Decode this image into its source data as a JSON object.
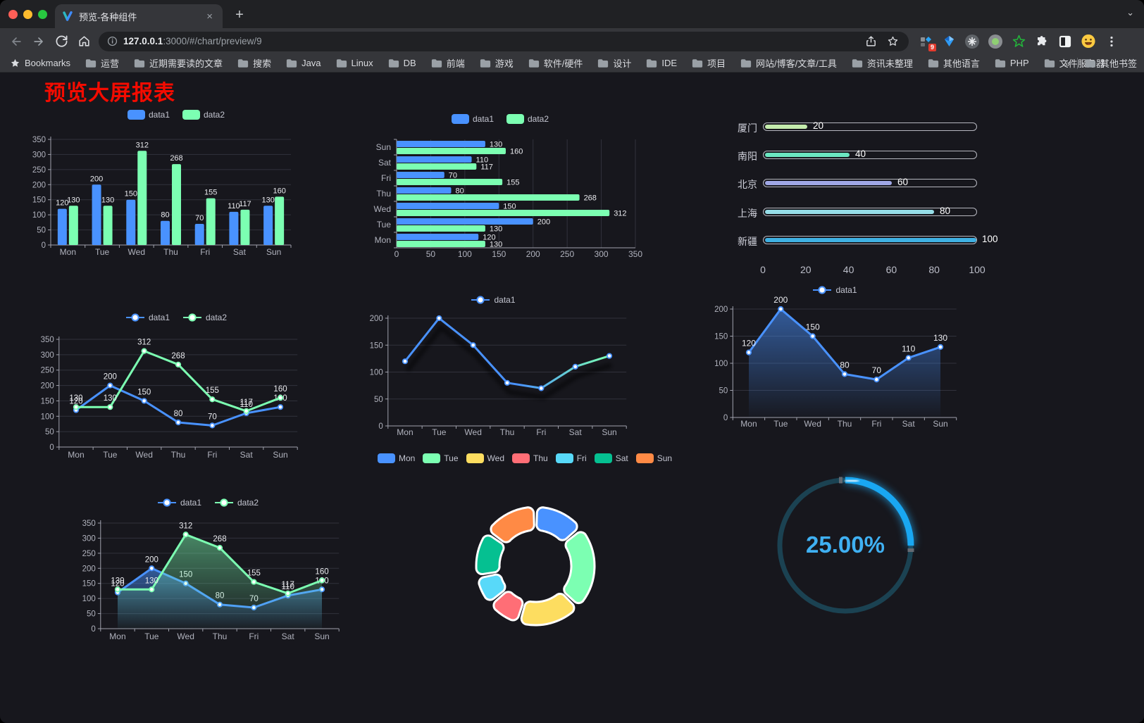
{
  "browser": {
    "tab": {
      "title": "预览-各种组件",
      "close_glyph": "×",
      "new_tab_glyph": "+",
      "chevron_glyph": "⌄"
    },
    "address": {
      "host": "127.0.0.1",
      "path": ":3000/#/chart/preview/9"
    },
    "extension_badge": "9",
    "bookmarks": {
      "star_label": "Bookmarks",
      "items": [
        "运营",
        "近期需要读的文章",
        "搜索",
        "Java",
        "Linux",
        "DB",
        "前端",
        "游戏",
        "软件/硬件",
        "设计",
        "IDE",
        "项目",
        "网站/博客/文章/工具",
        "资讯未整理",
        "其他语言",
        "PHP",
        "文件服务器"
      ],
      "overflow_glyph": "»",
      "other_label": "其他书签"
    }
  },
  "page": {
    "title": "预览大屏报表"
  },
  "chart_data": [
    {
      "id": "bar-grouped",
      "type": "bar",
      "categories": [
        "Mon",
        "Tue",
        "Wed",
        "Thu",
        "Fri",
        "Sat",
        "Sun"
      ],
      "series": [
        {
          "name": "data1",
          "color": "#4992ff",
          "values": [
            120,
            200,
            150,
            80,
            70,
            110,
            130
          ]
        },
        {
          "name": "data2",
          "color": "#7cffb2",
          "values": [
            130,
            130,
            312,
            268,
            155,
            117,
            160
          ]
        }
      ],
      "ylim": [
        0,
        350
      ],
      "ytick": 50,
      "legend_position": "top",
      "grid": true
    },
    {
      "id": "bar-horizontal",
      "type": "bar-horizontal",
      "categories": [
        "Mon",
        "Tue",
        "Wed",
        "Thu",
        "Fri",
        "Sat",
        "Sun"
      ],
      "series": [
        {
          "name": "data1",
          "color": "#4992ff",
          "values": [
            120,
            200,
            150,
            80,
            70,
            110,
            130
          ]
        },
        {
          "name": "data2",
          "color": "#7cffb2",
          "values": [
            130,
            130,
            312,
            268,
            155,
            117,
            160
          ]
        }
      ],
      "xlim": [
        0,
        350
      ],
      "xtick": 50,
      "legend_position": "top",
      "grid": true
    },
    {
      "id": "progress",
      "type": "bar-progress",
      "items": [
        {
          "label": "厦门",
          "value": 20,
          "color": "#c4ebad"
        },
        {
          "label": "南阳",
          "value": 40,
          "color": "#6be6c1"
        },
        {
          "label": "北京",
          "value": 60,
          "color": "#a0a7e6"
        },
        {
          "label": "上海",
          "value": 80,
          "color": "#96dee8"
        },
        {
          "label": "新疆",
          "value": 100,
          "color": "#3fb1e3"
        }
      ],
      "xticks": [
        0,
        20,
        40,
        60,
        80,
        100
      ],
      "xlim": [
        0,
        100
      ]
    },
    {
      "id": "line-two",
      "type": "line",
      "categories": [
        "Mon",
        "Tue",
        "Wed",
        "Thu",
        "Fri",
        "Sat",
        "Sun"
      ],
      "series": [
        {
          "name": "data1",
          "color": "#4992ff",
          "values": [
            120,
            200,
            150,
            80,
            70,
            110,
            130
          ]
        },
        {
          "name": "data2",
          "color": "#7cffb2",
          "values": [
            130,
            130,
            312,
            268,
            155,
            117,
            160
          ]
        }
      ],
      "ylim": [
        0,
        350
      ],
      "ytick": 50,
      "labels": true,
      "legend_position": "top",
      "grid": true
    },
    {
      "id": "line-one",
      "type": "line",
      "categories": [
        "Mon",
        "Tue",
        "Wed",
        "Thu",
        "Fri",
        "Sat",
        "Sun"
      ],
      "series": [
        {
          "name": "data1",
          "color": "#4992ff",
          "gradient": [
            "#4992ff",
            "#7cffb2"
          ],
          "values": [
            120,
            200,
            150,
            80,
            70,
            110,
            130
          ]
        }
      ],
      "ylim": [
        0,
        200
      ],
      "ytick": 50,
      "labels": false,
      "shadow": true,
      "legend_position": "top",
      "grid": true
    },
    {
      "id": "area-one",
      "type": "area",
      "categories": [
        "Mon",
        "Tue",
        "Wed",
        "Thu",
        "Fri",
        "Sat",
        "Sun"
      ],
      "series": [
        {
          "name": "data1",
          "color": "#4992ff",
          "area": true,
          "values": [
            120,
            200,
            150,
            80,
            70,
            110,
            130
          ]
        }
      ],
      "ylim": [
        0,
        200
      ],
      "ytick": 50,
      "labels": true,
      "legend_position": "top",
      "grid": true
    },
    {
      "id": "area-two",
      "type": "area",
      "categories": [
        "Mon",
        "Tue",
        "Wed",
        "Thu",
        "Fri",
        "Sat",
        "Sun"
      ],
      "series": [
        {
          "name": "data1",
          "color": "#4992ff",
          "area": true,
          "values": [
            120,
            200,
            150,
            80,
            70,
            110,
            130
          ]
        },
        {
          "name": "data2",
          "color": "#7cffb2",
          "area": true,
          "values": [
            130,
            130,
            312,
            268,
            155,
            117,
            160
          ]
        }
      ],
      "ylim": [
        0,
        350
      ],
      "ytick": 50,
      "labels": true,
      "legend_position": "top",
      "grid": true
    },
    {
      "id": "pie-donut",
      "type": "pie",
      "items": [
        {
          "name": "Mon",
          "value": 120,
          "color": "#4992ff"
        },
        {
          "name": "Tue",
          "value": 200,
          "color": "#7cffb2"
        },
        {
          "name": "Wed",
          "value": 150,
          "color": "#fddd60"
        },
        {
          "name": "Thu",
          "value": 80,
          "color": "#ff6e76"
        },
        {
          "name": "Fri",
          "value": 70,
          "color": "#58d9f9"
        },
        {
          "name": "Sat",
          "value": 110,
          "color": "#05c091"
        },
        {
          "name": "Sun",
          "value": 130,
          "color": "#ff8a45"
        }
      ],
      "donut": true,
      "legend_position": "top"
    },
    {
      "id": "gauge",
      "type": "gauge",
      "value": 25,
      "max": 100,
      "display": "25.00%",
      "color": "#19a7f2"
    }
  ]
}
